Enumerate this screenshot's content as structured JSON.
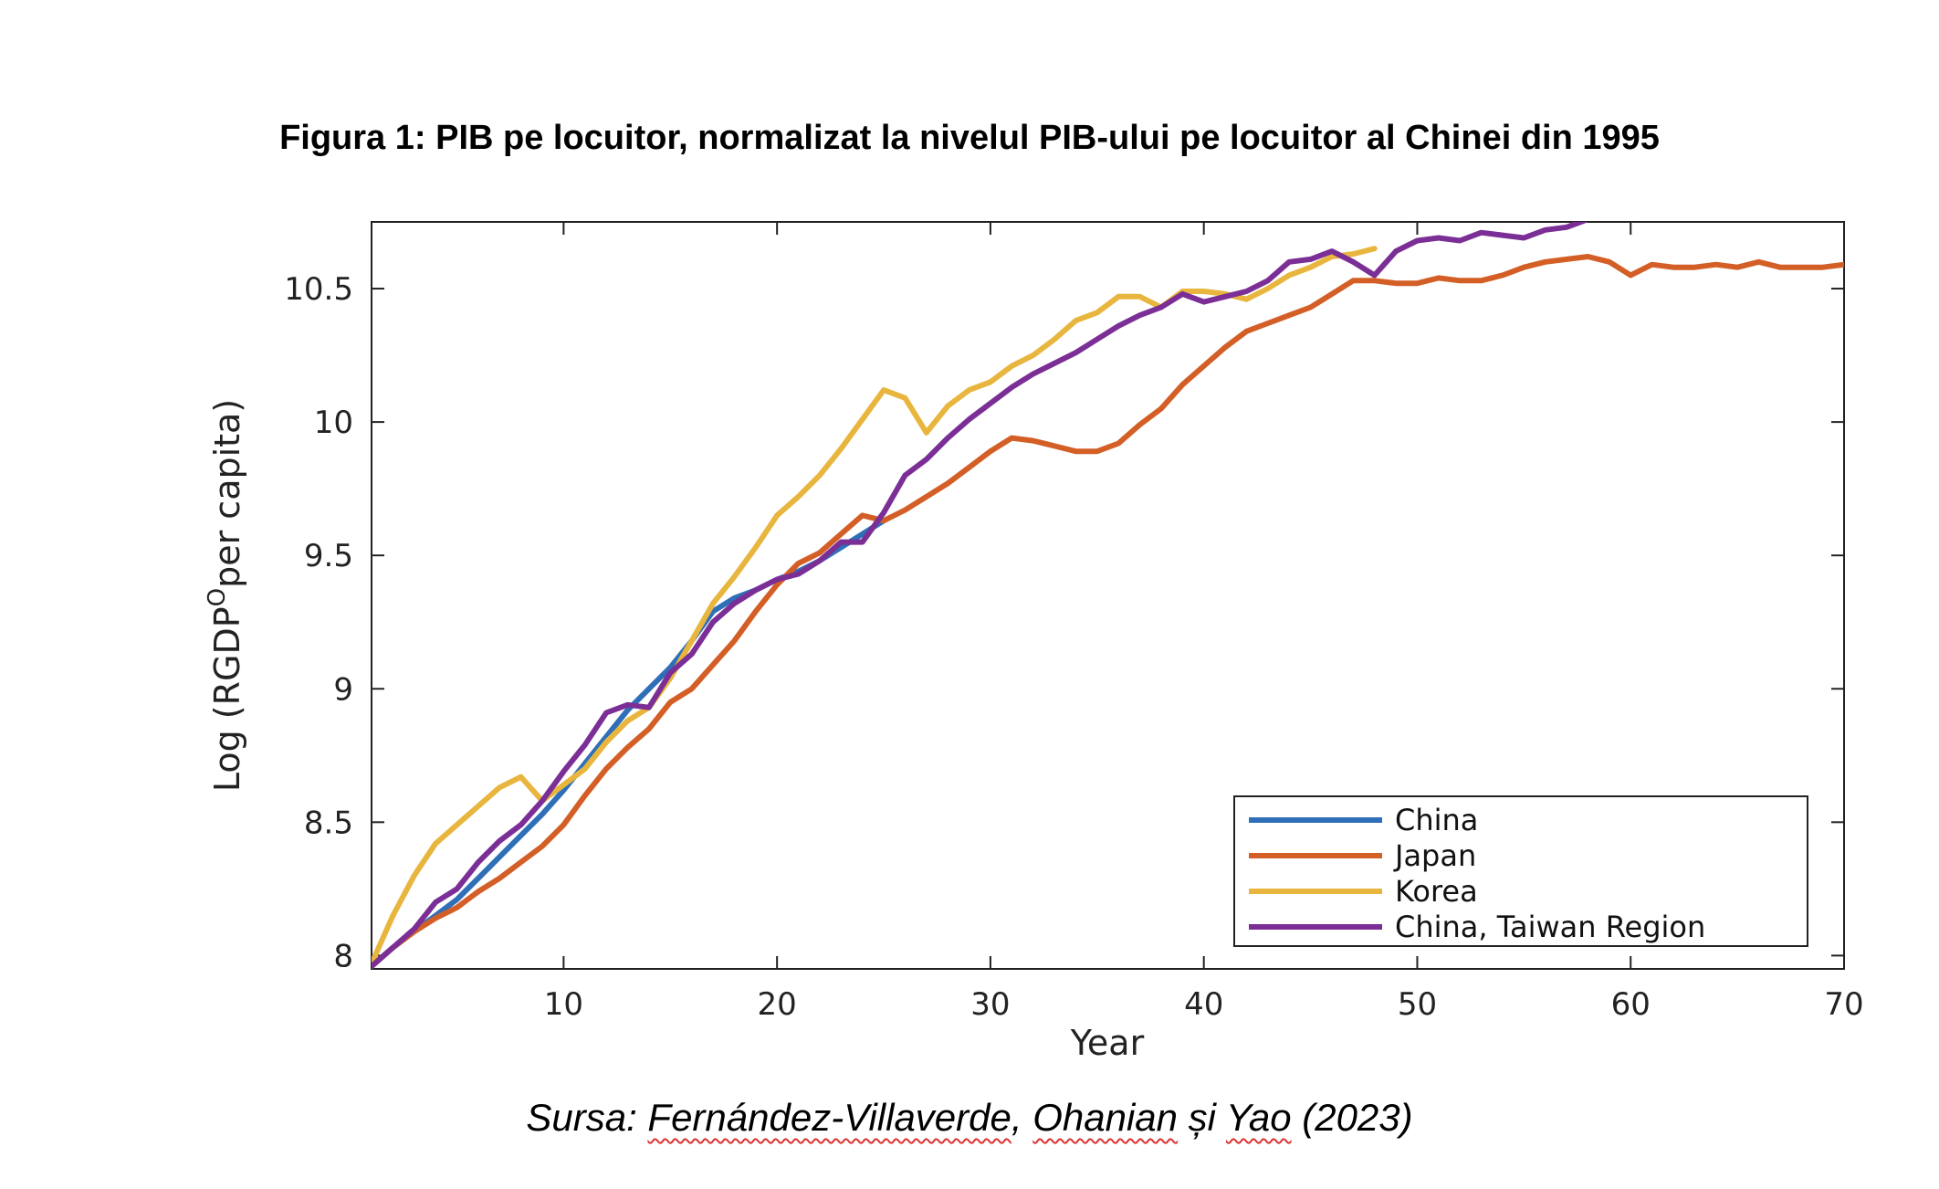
{
  "chart_data": {
    "type": "line",
    "title": "Figura 1: PIB pe locuitor, normalizat la nivelul PIB-ului pe locuitor al Chinei din 1995",
    "xlabel": "Year",
    "ylabel_main": "Log (RGDP",
    "ylabel_sup": "O",
    "ylabel_rest": "per capita)",
    "xlim": [
      1,
      70
    ],
    "ylim": [
      7.95,
      10.75
    ],
    "xticks": [
      10,
      20,
      30,
      40,
      50,
      60,
      70
    ],
    "yticks": [
      8,
      8.5,
      9,
      9.5,
      10,
      10.5
    ],
    "ytick_labels": [
      "8",
      "8.5",
      "9",
      "9.5",
      "10",
      "10.5"
    ],
    "legend_position": "bottom-right",
    "series": [
      {
        "name": "China",
        "color": "#2f6fb8",
        "x": [
          1,
          2,
          3,
          4,
          5,
          6,
          7,
          8,
          9,
          10,
          11,
          12,
          13,
          14,
          15,
          16,
          17,
          18,
          19,
          20,
          21,
          22,
          23,
          24,
          25
        ],
        "y": [
          7.96,
          8.03,
          8.09,
          8.15,
          8.21,
          8.29,
          8.37,
          8.45,
          8.53,
          8.62,
          8.72,
          8.82,
          8.92,
          9.0,
          9.08,
          9.18,
          9.29,
          9.34,
          9.37,
          9.41,
          9.44,
          9.48,
          9.53,
          9.58,
          9.63
        ]
      },
      {
        "name": "Japan",
        "color": "#d35f26",
        "x": [
          1,
          2,
          3,
          4,
          5,
          6,
          7,
          8,
          9,
          10,
          11,
          12,
          13,
          14,
          15,
          16,
          17,
          18,
          19,
          20,
          21,
          22,
          23,
          24,
          25,
          26,
          27,
          28,
          29,
          30,
          31,
          32,
          33,
          34,
          35,
          36,
          37,
          38,
          39,
          40,
          41,
          42,
          43,
          44,
          45,
          46,
          47,
          48,
          49,
          50,
          51,
          52,
          53,
          54,
          55,
          56,
          57,
          58,
          59,
          60,
          61,
          62,
          63,
          64,
          65,
          66,
          67,
          68,
          69,
          70
        ],
        "y": [
          7.96,
          8.03,
          8.09,
          8.14,
          8.18,
          8.24,
          8.29,
          8.35,
          8.41,
          8.49,
          8.6,
          8.7,
          8.78,
          8.85,
          8.95,
          9.0,
          9.09,
          9.18,
          9.29,
          9.39,
          9.47,
          9.51,
          9.58,
          9.65,
          9.63,
          9.67,
          9.72,
          9.77,
          9.83,
          9.89,
          9.94,
          9.93,
          9.91,
          9.89,
          9.89,
          9.92,
          9.99,
          10.05,
          10.14,
          10.21,
          10.28,
          10.34,
          10.37,
          10.4,
          10.43,
          10.48,
          10.53,
          10.53,
          10.52,
          10.52,
          10.54,
          10.53,
          10.53,
          10.55,
          10.58,
          10.6,
          10.61,
          10.62,
          10.6,
          10.55,
          10.59,
          10.58,
          10.58,
          10.59,
          10.58,
          10.6,
          10.58,
          10.58,
          10.58,
          10.59
        ]
      },
      {
        "name": "Korea",
        "color": "#e8b63e",
        "x": [
          1,
          2,
          3,
          4,
          5,
          6,
          7,
          8,
          9,
          10,
          11,
          12,
          13,
          14,
          15,
          16,
          17,
          18,
          19,
          20,
          21,
          22,
          23,
          24,
          25,
          26,
          27,
          28,
          29,
          30,
          31,
          32,
          33,
          34,
          35,
          36,
          37,
          38,
          39,
          40,
          41,
          42,
          43,
          44,
          45,
          46,
          47,
          48
        ],
        "y": [
          7.97,
          8.15,
          8.3,
          8.42,
          8.49,
          8.56,
          8.63,
          8.67,
          8.58,
          8.64,
          8.7,
          8.8,
          8.88,
          8.93,
          9.04,
          9.18,
          9.32,
          9.42,
          9.53,
          9.65,
          9.72,
          9.8,
          9.9,
          10.01,
          10.12,
          10.09,
          9.96,
          10.06,
          10.12,
          10.15,
          10.21,
          10.25,
          10.31,
          10.38,
          10.41,
          10.47,
          10.47,
          10.43,
          10.49,
          10.49,
          10.48,
          10.46,
          10.5,
          10.55,
          10.58,
          10.62,
          10.63,
          10.65
        ]
      },
      {
        "name": "China, Taiwan Region",
        "color": "#7b2f96",
        "x": [
          1,
          2,
          3,
          4,
          5,
          6,
          7,
          8,
          9,
          10,
          11,
          12,
          13,
          14,
          15,
          16,
          17,
          18,
          19,
          20,
          21,
          22,
          23,
          24,
          25,
          26,
          27,
          28,
          29,
          30,
          31,
          32,
          33,
          34,
          35,
          36,
          37,
          38,
          39,
          40,
          41,
          42,
          43,
          44,
          45,
          46,
          47,
          48,
          49,
          50,
          51,
          52,
          53,
          54,
          55,
          56,
          57,
          58
        ],
        "y": [
          7.96,
          8.03,
          8.1,
          8.2,
          8.25,
          8.35,
          8.43,
          8.49,
          8.58,
          8.69,
          8.79,
          8.91,
          8.94,
          8.93,
          9.06,
          9.13,
          9.25,
          9.32,
          9.37,
          9.41,
          9.43,
          9.48,
          9.55,
          9.55,
          9.66,
          9.8,
          9.86,
          9.94,
          10.01,
          10.07,
          10.13,
          10.18,
          10.22,
          10.26,
          10.31,
          10.36,
          10.4,
          10.43,
          10.48,
          10.45,
          10.47,
          10.49,
          10.53,
          10.6,
          10.61,
          10.64,
          10.6,
          10.55,
          10.64,
          10.68,
          10.69,
          10.68,
          10.71,
          10.7,
          10.69,
          10.72,
          10.73,
          10.76
        ]
      }
    ]
  },
  "source": {
    "prefix": "Sursa: ",
    "author1": "Fernández-Villaverde",
    "sep1": ", ",
    "author2": "Ohanian",
    "sep2": " și ",
    "author3": "Yao",
    "year": " (2023)"
  }
}
